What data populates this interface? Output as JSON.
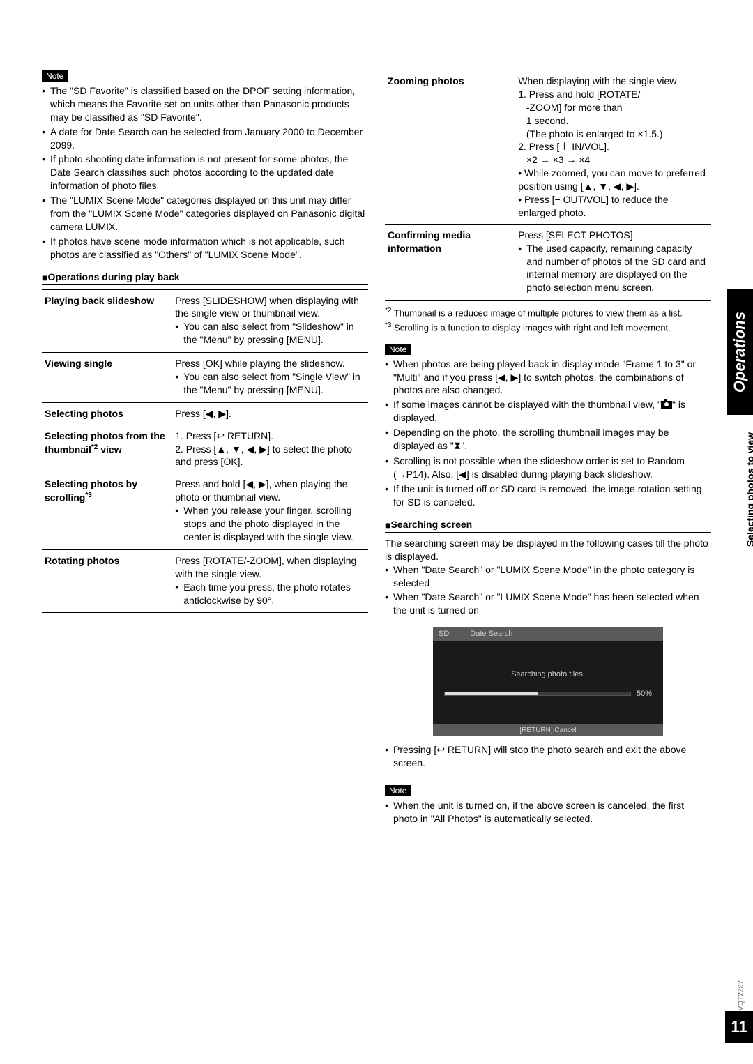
{
  "page_number": "11",
  "doc_id": "VQT2Z87",
  "side_tab": "Operations",
  "side_text": "Selecting photos to view",
  "note_label": "Note",
  "left": {
    "note1": [
      "The \"SD Favorite\" is classified based on the DPOF setting information, which means the Favorite set on units other than Panasonic products may be classified as \"SD Favorite\".",
      "A date for Date Search can be selected from January 2000 to December 2099.",
      "If photo shooting date information is not present for some photos, the Date Search classifies such photos according to the updated date information of photo files.",
      "The \"LUMIX Scene Mode\" categories displayed on this unit may differ from the \"LUMIX Scene Mode\" categories displayed on Panasonic digital camera LUMIX.",
      "If photos have scene mode information which is not applicable, such photos are classified as \"Others\" of \"LUMIX Scene Mode\"."
    ],
    "ops_head": "Operations during play back",
    "rows": [
      {
        "label": "Playing back slideshow",
        "desc": "Press [SLIDESHOW] when displaying with the single view or thumbnail view.",
        "sub": "You can also select from \"Slideshow\" in the \"Menu\" by pressing [MENU]."
      },
      {
        "label": "Viewing single",
        "desc": "Press [OK] while playing the slideshow.",
        "sub": "You can also select from \"Single View\" in the \"Menu\" by pressing [MENU]."
      },
      {
        "label": "Selecting photos",
        "desc": "Press [◀, ▶]."
      },
      {
        "label_html": "Selecting photos from the thumbnail<span class='ref-sup'>*2</span> view",
        "desc_html": "1. Press [↩ RETURN].<br>2. Press [▲, ▼, ◀, ▶] to select the photo and press [OK]."
      },
      {
        "label_html": "Selecting photos by scrolling<span class='ref-sup'>*3</span>",
        "desc": "Press and hold [◀, ▶], when playing the photo or thumbnail view.",
        "sub": "When you release your finger, scrolling stops and the photo displayed in the center is displayed with the single view."
      },
      {
        "label": "Rotating photos",
        "desc": "Press [ROTATE/-ZOOM], when displaying with the single view.",
        "sub": "Each time you press, the photo rotates anticlockwise by 90°."
      }
    ]
  },
  "right": {
    "rows": [
      {
        "label": "Zooming photos",
        "desc_html": "When displaying with the single view<br>1. Press and hold [ROTATE/<br>&nbsp;&nbsp;&nbsp;-ZOOM] for more than<br>&nbsp;&nbsp;&nbsp;1 second.<br>&nbsp;&nbsp;&nbsp;(The photo is enlarged to ×1.5.)<br>2. Press [＋ IN/VOL].<br>&nbsp;&nbsp;&nbsp;×2 → ×3 → ×4<br>• While zoomed, you can move to preferred position using [▲, ▼, ◀, ▶].<br>• Press [− OUT/VOL] to reduce the enlarged photo."
      },
      {
        "label": "Confirming media information",
        "desc": "Press [SELECT PHOTOS].",
        "sub": "The used capacity, remaining capacity and number of photos of the SD card and internal memory are displayed on the photo selection menu screen."
      }
    ],
    "fn2": "Thumbnail is a reduced image of multiple pictures to view them as a list.",
    "fn3": "Scrolling is a function to display images with right and left movement.",
    "note2_pre": "When photos are being played back in display mode \"Frame 1 to 3\" or \"Multi\" and if you press [◀, ▶] to switch photos, the combinations of photos are also changed.",
    "note2_b": "If some images cannot be displayed with the thumbnail view, \"",
    "note2_b2": "\" is displayed.",
    "note2_c": "Depending on the photo, the scrolling thumbnail images may be displayed as \"",
    "note2_c2": "\".",
    "note2_d": "Scrolling is not possible when the slideshow order is set to Random (→P14). Also, [◀] is disabled during playing back slideshow.",
    "note2_e": "If the unit is turned off or SD card is removed, the image rotation setting for SD is canceled.",
    "search_head": "Searching screen",
    "search_intro": "The searching screen may be displayed in the following cases till the photo is displayed.",
    "search_b1": "When \"Date Search\" or \"LUMIX Scene Mode\" in the photo category is selected",
    "search_b2": "When \"Date Search\" or \"LUMIX Scene Mode\" has been selected when the unit is turned on",
    "ss": {
      "sd": "SD",
      "title": "Date Search",
      "msg": "Searching photo files.",
      "pct": "50%",
      "bar_pct": 50,
      "footer": "[RETURN]:Cancel"
    },
    "after_ss": "Pressing [↩ RETURN] will stop the photo search and exit the above screen.",
    "note3": "When the unit is turned on, if the above screen is canceled, the first photo in \"All Photos\" is automatically selected."
  }
}
